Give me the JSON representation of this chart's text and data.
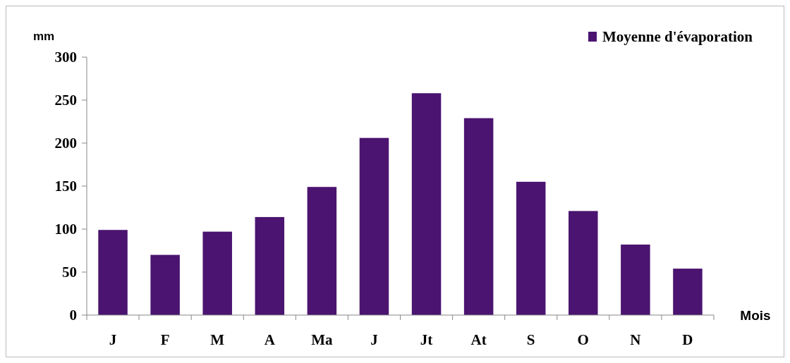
{
  "chart_data": {
    "type": "bar",
    "xlabel": "Mois",
    "ylabel": "mm",
    "categories": [
      "J",
      "F",
      "M",
      "A",
      "Ma",
      "J",
      "Jt",
      "At",
      "S",
      "O",
      "N",
      "D"
    ],
    "series": [
      {
        "name": "Moyenne d'évaporation",
        "color": "#4b1470",
        "values": [
          99,
          70,
          97,
          114,
          149,
          206,
          258,
          229,
          155,
          121,
          82,
          54
        ]
      }
    ],
    "ylim": [
      0,
      300
    ],
    "yticks": [
      0,
      50,
      100,
      150,
      200,
      250,
      300
    ],
    "legend": "top right"
  }
}
